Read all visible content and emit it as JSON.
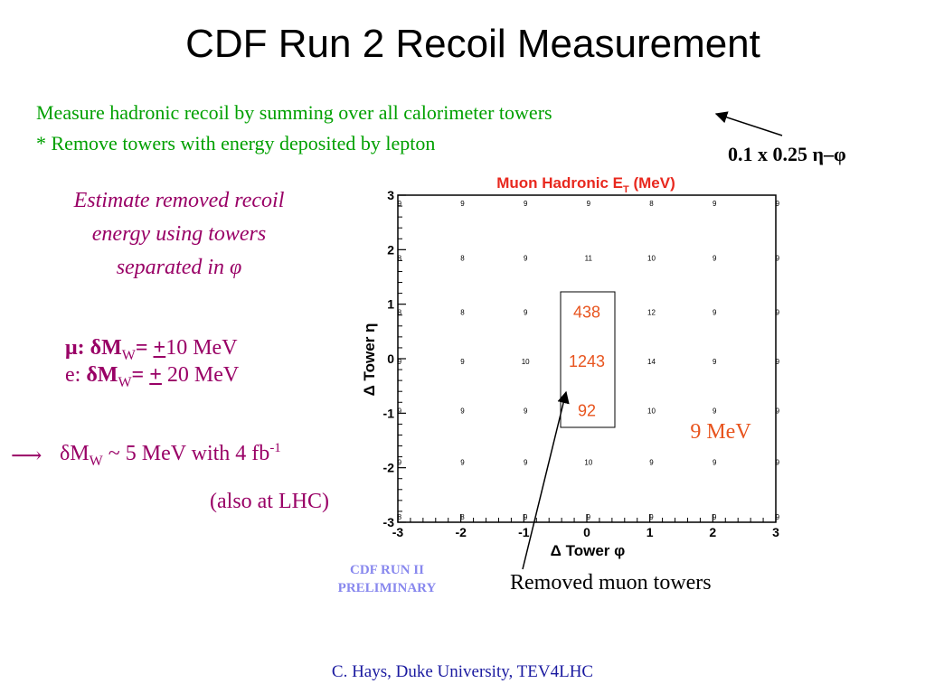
{
  "slide": {
    "title": "CDF Run 2 Recoil Measurement",
    "intro_line1": "Measure hadronic recoil by summing over all calorimeter towers",
    "intro_line2": "*  Remove towers with energy deposited by lepton",
    "tower_size_label": "0.1 x 0.25 η–φ",
    "estimate_text": "Estimate removed recoil energy using towers separated in φ",
    "muon_resolution": {
      "prefix": "μ: ",
      "delta": "δM",
      "sub": "W",
      "eq": "= ",
      "pm": "+",
      "value": "10 MeV"
    },
    "electron_resolution": {
      "prefix": "e: ",
      "delta": "δM",
      "sub": "W",
      "eq": "= ",
      "pm": "+",
      "value": " 20 MeV"
    },
    "future": {
      "arrow": "⟶",
      "delta": "δM",
      "sub": "W",
      "text": " ~ 5 MeV with 4 fb",
      "sup": "-1"
    },
    "lhc_note": "(also at LHC)",
    "preliminary": "CDF RUN II PRELIMINARY",
    "removed_label": "Removed muon towers",
    "credit": "C. Hays, Duke University, TEV4LHC",
    "colors": {
      "green": "#00a000",
      "purple": "#990066",
      "plot_title": "#e8281e",
      "box_text": "#e8541e",
      "preliminary": "#8888ee",
      "credit": "#1a1aa0"
    }
  },
  "chart_data": {
    "type": "heatmap",
    "title": "Muon Hadronic E",
    "title_sub": "T",
    "title_unit": " (MeV)",
    "xlabel": "Δ Tower φ",
    "ylabel": "Δ Tower η",
    "xlim": [
      -3,
      3
    ],
    "ylim": [
      -3,
      3
    ],
    "x_ticks": [
      "-3",
      "-2",
      "-1",
      "0",
      "1",
      "2",
      "3"
    ],
    "y_ticks": [
      "-3",
      "-2",
      "-1",
      "0",
      "1",
      "2",
      "3"
    ],
    "x_centers": [
      -2.5,
      -1.5,
      -0.5,
      0.5,
      1.5,
      2.5,
      3.5
    ],
    "y_centers": [
      2.5,
      1.5,
      0.5,
      -0.5,
      -1.5,
      -2.5
    ],
    "grid_values": [
      [
        "9",
        "9",
        "9",
        "9",
        "8",
        "9",
        "9"
      ],
      [
        "8",
        "8",
        "9",
        "11",
        "10",
        "9",
        "9"
      ],
      [
        "8",
        "8",
        "9",
        "",
        "12",
        "9",
        "9"
      ],
      [
        "9",
        "9",
        "10",
        "",
        "14",
        "9",
        "9"
      ],
      [
        "9",
        "9",
        "9",
        "",
        "10",
        "9",
        "9"
      ],
      [
        "9",
        "9",
        "9",
        "10",
        "9",
        "9",
        "9"
      ],
      [
        "8",
        "8",
        "9",
        "9",
        "9",
        "9",
        "9"
      ]
    ],
    "grid_y_centers": [
      2.85,
      1.85,
      0.85,
      -0.05,
      -0.95,
      -1.9,
      -2.9
    ],
    "removed_towers": [
      {
        "eta": 0.85,
        "value": "438"
      },
      {
        "eta": -0.05,
        "value": "1243"
      },
      {
        "eta": -0.95,
        "value": "92"
      }
    ],
    "annotation": "9 MeV"
  }
}
